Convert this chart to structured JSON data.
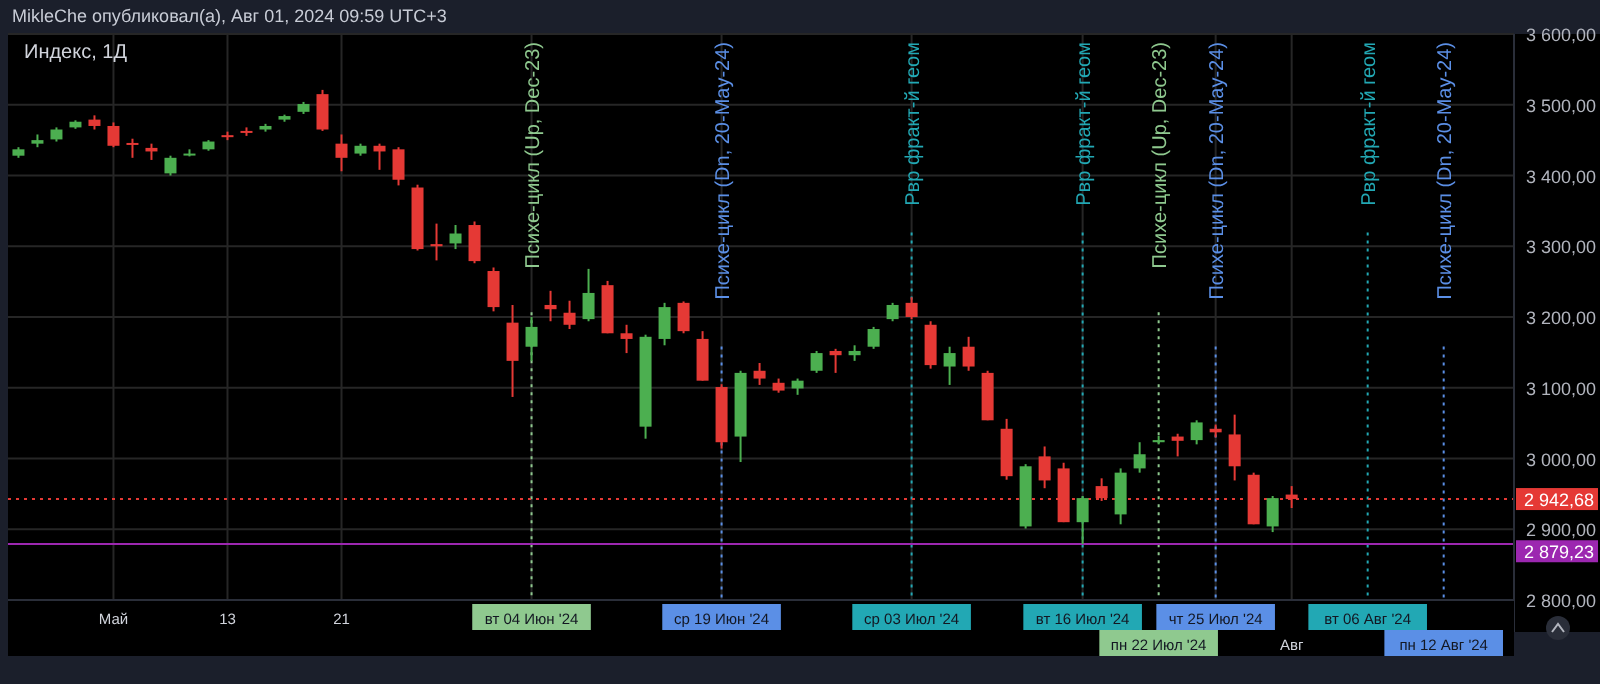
{
  "chart_data": {
    "type": "candlestick",
    "title": "Индекс, 1Д",
    "annotations": [
      "MikleChe опубликовал(а), Авг 01, 2024 09:59 UTC+3"
    ],
    "categories": [
      null,
      null,
      null,
      null,
      null,
      "Май",
      null,
      null,
      null,
      null,
      null,
      "13",
      null,
      null,
      null,
      null,
      null,
      "21",
      null,
      null,
      null,
      null,
      null,
      null,
      null,
      null,
      null,
      "вт 04 Июн '24",
      null,
      null,
      null,
      null,
      null,
      null,
      null,
      null,
      null,
      "ср 19 Июн '24",
      null,
      null,
      null,
      null,
      null,
      null,
      null,
      null,
      null,
      "ср 03 Июл '24",
      null,
      null,
      null,
      null,
      null,
      null,
      null,
      null,
      "вт 16 Июл '24",
      null,
      null,
      null,
      "пн 22 Июл '24",
      null,
      null,
      "чт 25 Июл '24",
      null,
      null,
      null,
      "Авг",
      null,
      null,
      null,
      "вт 06 Авг '24",
      null,
      null,
      null,
      "пн 12 Авг '24",
      null,
      null,
      null
    ],
    "ohlc": [
      [
        3428,
        3440,
        3425,
        3437
      ],
      [
        3445,
        3458,
        3440,
        3450
      ],
      [
        3451,
        3468,
        3448,
        3465
      ],
      [
        3468,
        3478,
        3466,
        3476
      ],
      [
        3479,
        3485,
        3465,
        3470
      ],
      [
        3470,
        3475,
        3440,
        3442
      ],
      [
        3446,
        3452,
        3425,
        3444
      ],
      [
        3439,
        3445,
        3422,
        3434
      ],
      [
        3403,
        3428,
        3400,
        3425
      ],
      [
        3430,
        3437,
        3427,
        3431
      ],
      [
        3437,
        3450,
        3435,
        3448
      ],
      [
        3457,
        3462,
        3450,
        3455
      ],
      [
        3463,
        3468,
        3456,
        3461
      ],
      [
        3465,
        3473,
        3462,
        3470
      ],
      [
        3479,
        3486,
        3476,
        3484
      ],
      [
        3490,
        3504,
        3487,
        3501
      ],
      [
        3515,
        3521,
        3463,
        3465
      ],
      [
        3445,
        3458,
        3406,
        3425
      ],
      [
        3431,
        3445,
        3428,
        3442
      ],
      [
        3442,
        3445,
        3408,
        3434
      ],
      [
        3437,
        3440,
        3386,
        3394
      ],
      [
        3383,
        3387,
        3294,
        3296
      ],
      [
        3303,
        3332,
        3280,
        3300
      ],
      [
        3304,
        3330,
        3296,
        3318
      ],
      [
        3330,
        3335,
        3276,
        3279
      ],
      [
        3265,
        3270,
        3208,
        3214
      ],
      [
        3192,
        3217,
        3087,
        3138
      ],
      [
        3158,
        3200,
        3138,
        3186
      ],
      [
        3217,
        3237,
        3194,
        3211
      ],
      [
        3206,
        3223,
        3183,
        3189
      ],
      [
        3197,
        3268,
        3194,
        3234
      ],
      [
        3245,
        3251,
        3177,
        3177
      ],
      [
        3177,
        3189,
        3149,
        3169
      ],
      [
        3045,
        3175,
        3028,
        3172
      ],
      [
        3169,
        3220,
        3160,
        3214
      ],
      [
        3220,
        3222,
        3177,
        3180
      ],
      [
        3169,
        3180,
        3110,
        3110
      ],
      [
        3101,
        3105,
        3014,
        3023
      ],
      [
        3031,
        3124,
        2995,
        3121
      ],
      [
        3124,
        3135,
        3104,
        3113
      ],
      [
        3107,
        3113,
        3093,
        3096
      ],
      [
        3099,
        3113,
        3090,
        3110
      ],
      [
        3124,
        3152,
        3121,
        3149
      ],
      [
        3152,
        3155,
        3121,
        3146
      ],
      [
        3146,
        3160,
        3138,
        3152
      ],
      [
        3158,
        3186,
        3155,
        3183
      ],
      [
        3197,
        3220,
        3194,
        3217
      ],
      [
        3220,
        3228,
        3197,
        3200
      ],
      [
        3189,
        3194,
        3127,
        3132
      ],
      [
        3130,
        3158,
        3104,
        3149
      ],
      [
        3158,
        3172,
        3124,
        3130
      ],
      [
        3121,
        3124,
        3054,
        3054
      ],
      [
        3042,
        3056,
        2970,
        2975
      ],
      [
        2904,
        2992,
        2901,
        2989
      ],
      [
        3003,
        3017,
        2958,
        2969
      ],
      [
        2986,
        2994,
        2910,
        2910
      ],
      [
        2910,
        2947,
        2879,
        2944
      ],
      [
        2961,
        2972,
        2940,
        2944
      ],
      [
        2921,
        2986,
        2907,
        2980
      ],
      [
        2986,
        3023,
        2980,
        3006
      ],
      [
        3023,
        3032,
        3020,
        3026
      ],
      [
        3031,
        3035,
        3003,
        3025
      ],
      [
        3026,
        3054,
        3020,
        3051
      ],
      [
        3042,
        3048,
        3030,
        3037
      ],
      [
        3034,
        3062,
        2969,
        2989
      ],
      [
        2977,
        2980,
        2907,
        2907
      ],
      [
        2904,
        2947,
        2896,
        2944
      ],
      [
        2949,
        2961,
        2930,
        2942.68
      ],
      null,
      null,
      null,
      null,
      null,
      null,
      null,
      null,
      null,
      null,
      null
    ],
    "ylim": [
      2800,
      3600
    ],
    "yticks": [
      {
        "value": 2800,
        "label": "2 800,00"
      },
      {
        "value": 2900,
        "label": "2 900,00"
      },
      {
        "value": 3000,
        "label": "3 000,00"
      },
      {
        "value": 3100,
        "label": "3 100,00"
      },
      {
        "value": 3200,
        "label": "3 200,00"
      },
      {
        "value": 3300,
        "label": "3 300,00"
      },
      {
        "value": 3400,
        "label": "3 400,00"
      },
      {
        "value": 3500,
        "label": "3 500,00"
      },
      {
        "value": 3600,
        "label": "3 600,00"
      }
    ],
    "grid": true,
    "ref_lines": [
      {
        "axis": "x",
        "value": "вт 04 Июн '24",
        "label": "Психе-цикл (Up, Dec-23)",
        "color": "#8fc98f",
        "line_style": "dotted"
      },
      {
        "axis": "x",
        "value": "ср 19 Июн '24",
        "label": "Психе-цикл (Dn, 20-May-24)",
        "color": "#5b8fe6",
        "line_style": "dotted"
      },
      {
        "axis": "x",
        "value": "ср 03 Июл '24",
        "label": "Рвр фракт-й геом",
        "color": "#22a8b4",
        "line_style": "dotted"
      },
      {
        "axis": "x",
        "value": "вт 16 Июл '24",
        "label": "Рвр фракт-й геом",
        "color": "#22a8b4",
        "line_style": "dotted"
      },
      {
        "axis": "x",
        "value": "пн 22 Июл '24",
        "label": "Психе-цикл (Up, Dec-23)",
        "color": "#8fc98f",
        "line_style": "dotted"
      },
      {
        "axis": "x",
        "value": "чт 25 Июл '24",
        "label": "Психе-цикл (Dn, 20-May-24)",
        "color": "#5b8fe6",
        "line_style": "dotted"
      },
      {
        "axis": "x",
        "value": "вт 06 Авг '24",
        "label": "Рвр фракт-й геом",
        "color": "#22a8b4",
        "line_style": "dotted"
      },
      {
        "axis": "x",
        "value": "пн 12 Авг '24",
        "label": "Психе-цикл (Dn, 20-May-24)",
        "color": "#5b8fe6",
        "line_style": "dotted"
      },
      {
        "axis": "y",
        "value": 2942.68,
        "label": "2 942,68",
        "color": "#e53935",
        "line_style": "dotted"
      },
      {
        "axis": "y",
        "value": 2879.23,
        "label": "2 879,23",
        "color": "#9c27b0",
        "line_style": "solid"
      }
    ]
  }
}
